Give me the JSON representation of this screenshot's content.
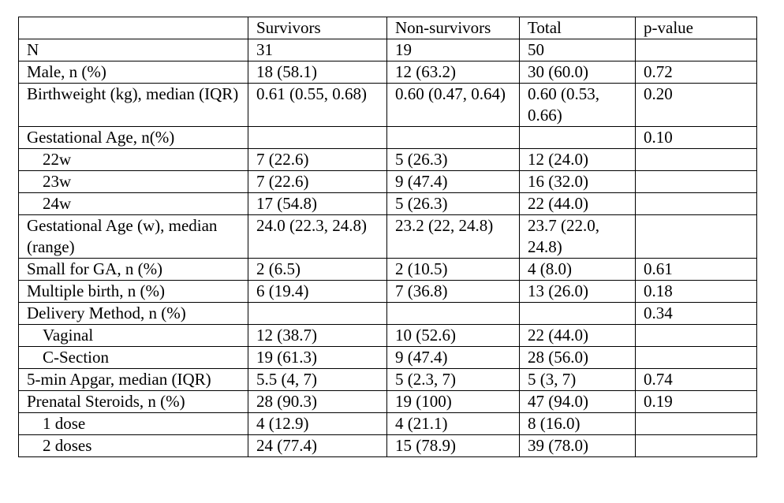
{
  "table": {
    "headers": [
      "",
      "Survivors",
      "Non-survivors",
      "Total",
      "p-value"
    ],
    "rows": [
      {
        "label": "N",
        "indent": false,
        "cells": [
          "31",
          "19",
          "50",
          ""
        ]
      },
      {
        "label": "Male, n (%)",
        "indent": false,
        "cells": [
          "18 (58.1)",
          "12 (63.2)",
          "30 (60.0)",
          "0.72"
        ]
      },
      {
        "label": "Birthweight (kg), median (IQR)",
        "indent": false,
        "cells": [
          "0.61 (0.55, 0.68)",
          "0.60 (0.47, 0.64)",
          "0.60 (0.53, 0.66)",
          "0.20"
        ]
      },
      {
        "label": "Gestational Age, n(%)",
        "indent": false,
        "cells": [
          "",
          "",
          "",
          "0.10"
        ]
      },
      {
        "label": "22w",
        "indent": true,
        "cells": [
          "7 (22.6)",
          "5 (26.3)",
          "12 (24.0)",
          ""
        ]
      },
      {
        "label": "23w",
        "indent": true,
        "cells": [
          "7 (22.6)",
          "9 (47.4)",
          "16 (32.0)",
          ""
        ]
      },
      {
        "label": "24w",
        "indent": true,
        "cells": [
          "17 (54.8)",
          "5 (26.3)",
          "22 (44.0)",
          ""
        ]
      },
      {
        "label": "Gestational Age (w), median (range)",
        "indent": false,
        "cells": [
          "24.0 (22.3, 24.8)",
          "23.2 (22, 24.8)",
          "23.7 (22.0, 24.8)",
          ""
        ]
      },
      {
        "label": "Small for GA, n (%)",
        "indent": false,
        "cells": [
          "2 (6.5)",
          "2 (10.5)",
          "4 (8.0)",
          "0.61"
        ]
      },
      {
        "label": "Multiple birth, n (%)",
        "indent": false,
        "cells": [
          "6 (19.4)",
          "7 (36.8)",
          "13 (26.0)",
          "0.18"
        ]
      },
      {
        "label": "Delivery Method, n (%)",
        "indent": false,
        "cells": [
          "",
          "",
          "",
          "0.34"
        ]
      },
      {
        "label": "Vaginal",
        "indent": true,
        "cells": [
          "12 (38.7)",
          "10 (52.6)",
          "22 (44.0)",
          ""
        ]
      },
      {
        "label": "C-Section",
        "indent": true,
        "cells": [
          "19 (61.3)",
          "9 (47.4)",
          "28 (56.0)",
          ""
        ]
      },
      {
        "label": "5-min Apgar, median (IQR)",
        "indent": false,
        "cells": [
          "5.5 (4, 7)",
          "5 (2.3, 7)",
          "5 (3, 7)",
          "0.74"
        ]
      },
      {
        "label": "Prenatal Steroids, n (%)",
        "indent": false,
        "cells": [
          "28 (90.3)",
          "19 (100)",
          "47 (94.0)",
          "0.19"
        ]
      },
      {
        "label": "1 dose",
        "indent": true,
        "cells": [
          "4 (12.9)",
          "4 (21.1)",
          "8 (16.0)",
          ""
        ]
      },
      {
        "label": "2 doses",
        "indent": true,
        "cells": [
          "24 (77.4)",
          "15 (78.9)",
          "39 (78.0)",
          ""
        ]
      }
    ]
  }
}
